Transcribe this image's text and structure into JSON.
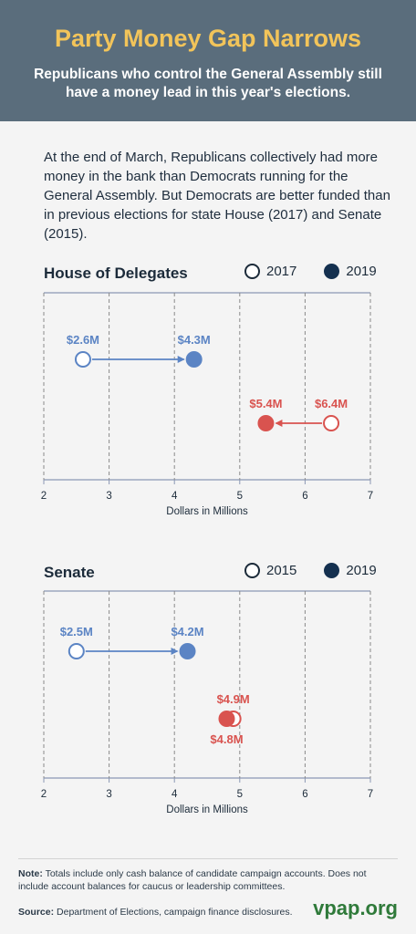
{
  "header": {
    "title": "Party Money Gap Narrows",
    "subtitle": "Republicans who control the General Assembly still have a money lead in this year's elections."
  },
  "intro": "At the end of March, Republicans collectively had more money in the bank than Democrats running for the General Assembly. But Democrats are better funded than in previous elections for state House (2017) and Senate (2015).",
  "colors": {
    "democrat": "#5b84c4",
    "republican": "#d9534f",
    "axis": "#8b98b4",
    "legend_fill": "#14304f"
  },
  "chart_data": [
    {
      "type": "dumbbell",
      "title": "House of Delegates",
      "legend": [
        "2017",
        "2019"
      ],
      "xlabel": "Dollars in Millions",
      "xlim": [
        2,
        7
      ],
      "ticks": [
        "2",
        "3",
        "4",
        "5",
        "6",
        "7"
      ],
      "series": [
        {
          "party": "Democrat",
          "from": 2.6,
          "to": 4.3,
          "from_label": "$2.6M",
          "to_label": "$4.3M"
        },
        {
          "party": "Republican",
          "from": 6.4,
          "to": 5.4,
          "from_label": "$6.4M",
          "to_label": "$5.4M"
        }
      ]
    },
    {
      "type": "dumbbell",
      "title": "Senate",
      "legend": [
        "2015",
        "2019"
      ],
      "xlabel": "Dollars in Millions",
      "xlim": [
        2,
        7
      ],
      "ticks": [
        "2",
        "3",
        "4",
        "5",
        "6",
        "7"
      ],
      "series": [
        {
          "party": "Democrat",
          "from": 2.5,
          "to": 4.2,
          "from_label": "$2.5M",
          "to_label": "$4.2M"
        },
        {
          "party": "Republican",
          "from": 4.9,
          "to": 4.8,
          "from_label": "$4.9M",
          "to_label": "$4.8M"
        }
      ]
    }
  ],
  "footer": {
    "note_label": "Note:",
    "note": "Totals include only cash balance of candidate campaign accounts. Does not include account balances for caucus or leadership committees.",
    "source_label": "Source:",
    "source": "Department of Elections, campaign finance disclosures.",
    "brand": "vpap.org"
  }
}
